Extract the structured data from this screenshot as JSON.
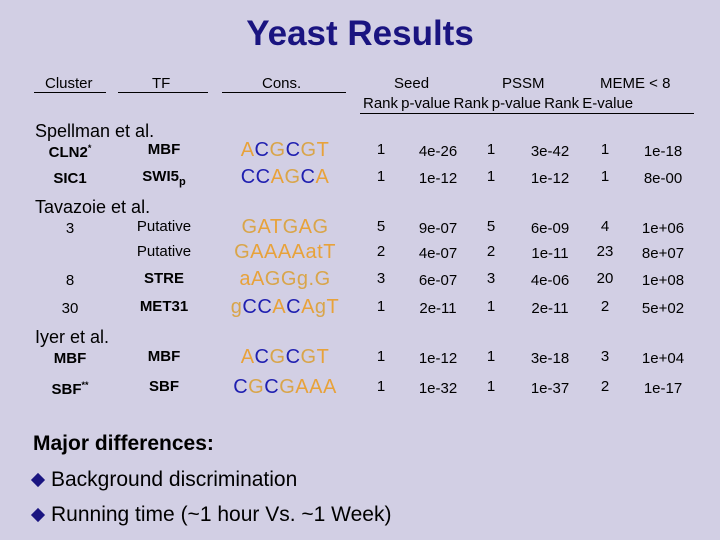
{
  "title": "Yeast Results",
  "headers": {
    "cluster": "Cluster",
    "tf": "TF",
    "cons": "Cons.",
    "seed": "Seed",
    "pssm": "PSSM",
    "meme": "MEME < 8",
    "sub": "Rank  p-value  Rank  p-value  Rank  E-value"
  },
  "sections": {
    "spellman": "Spellman et al.",
    "tavazoie": "Tavazoie et al.",
    "iyer": "Iyer et al."
  },
  "rows": [
    {
      "cluster": "CLN2",
      "cluster_sup": "*",
      "tf": "MBF",
      "tf_sub": "",
      "seq": "ACGCGT",
      "r1": "1",
      "p1": "4e-26",
      "r2": "1",
      "p2": "3e-42",
      "r3": "1",
      "p3": "1e-18"
    },
    {
      "cluster": "SIC1",
      "cluster_sup": "",
      "tf": "SWI5",
      "tf_sub": "p",
      "seq": "CCAGCA",
      "r1": "1",
      "p1": "1e-12",
      "r2": "1",
      "p2": "1e-12",
      "r3": "1",
      "p3": "8e-00"
    },
    {
      "cluster": "3",
      "cluster_sup": "",
      "tf": "Putative",
      "tf_sub": "",
      "seq": "GATGAG",
      "r1": "5",
      "p1": "9e-07",
      "r2": "5",
      "p2": "6e-09",
      "r3": "4",
      "p3": "1e+06"
    },
    {
      "cluster": "",
      "cluster_sup": "",
      "tf": "Putative",
      "tf_sub": "",
      "seq": "GAAAAatT",
      "r1": "2",
      "p1": "4e-07",
      "r2": "2",
      "p2": "1e-11",
      "r3": "23",
      "p3": "8e+07"
    },
    {
      "cluster": "8",
      "cluster_sup": "",
      "tf": "STRE",
      "tf_sub": "",
      "seq": "aAGGg.G",
      "r1": "3",
      "p1": "6e-07",
      "r2": "3",
      "p2": "4e-06",
      "r3": "20",
      "p3": "1e+08"
    },
    {
      "cluster": "30",
      "cluster_sup": "",
      "tf": "MET31",
      "tf_sub": "",
      "seq": "gCCACAgT",
      "r1": "1",
      "p1": "2e-11",
      "r2": "1",
      "p2": "2e-11",
      "r3": "2",
      "p3": "5e+02"
    },
    {
      "cluster": "MBF",
      "cluster_sup": "",
      "tf": "MBF",
      "tf_sub": "",
      "seq": "ACGCGT",
      "r1": "1",
      "p1": "1e-12",
      "r2": "1",
      "p2": "3e-18",
      "r3": "3",
      "p3": "1e+04"
    },
    {
      "cluster": "SBF",
      "cluster_sup": "**",
      "tf": "SBF",
      "tf_sub": "",
      "seq": "CGCGAAA",
      "r1": "1",
      "p1": "1e-32",
      "r2": "1",
      "p2": "1e-37",
      "r3": "2",
      "p3": "1e-17"
    }
  ],
  "notes": {
    "heading": "Major differences:",
    "items": [
      "Background discrimination",
      "Running time (~1 hour Vs. ~1 Week)"
    ]
  },
  "colors": {
    "A": "#e8a23a",
    "C": "#1f1fb0",
    "G": "#d9a54a",
    "T": "#e8a23a",
    "title": "#1a1480"
  }
}
